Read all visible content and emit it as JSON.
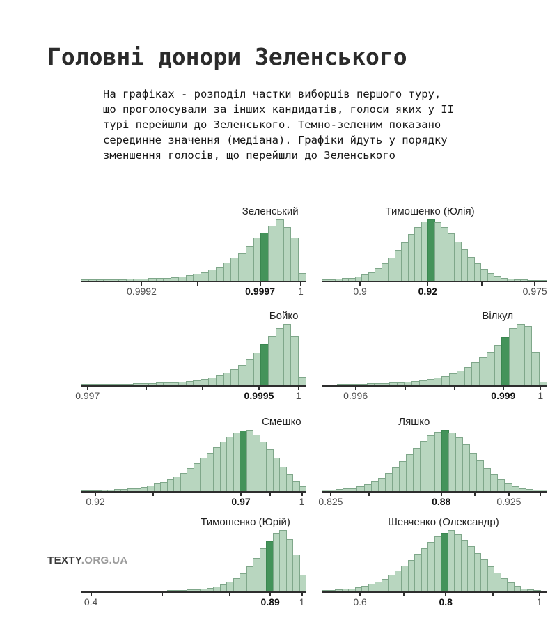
{
  "header": {
    "title": "Головні донори Зеленського",
    "subtitle": "На графіках - розподіл частки виборців першого туру,\nщо проголосували за інших кандидатів, голоси яких у ІІ\nтурі перейшли до Зеленського. Темно-зеленим показано\nсерединне значення (медіана). Графіки йдуть у порядку\nзменшення голосів, що перейшли до Зеленського"
  },
  "footer": {
    "logo_bold": "TEXTY",
    "logo_rest": ".ORG.UA"
  },
  "colors": {
    "bar_fill": "#b8d6bf",
    "bar_border": "#7fa78a",
    "median_fill": "#44935a",
    "median_border": "#3a8750",
    "axis": "#2e2e2e"
  },
  "chart_data": [
    {
      "type": "bar",
      "title": "Зеленський",
      "title_pos_pct": 84,
      "median_value": "0.9997",
      "median_bar_index": 24,
      "values_pct": [
        2,
        2,
        2,
        2,
        2,
        2,
        3,
        3,
        3,
        4,
        4,
        5,
        6,
        7,
        9,
        11,
        14,
        18,
        23,
        29,
        37,
        46,
        57,
        70,
        78,
        90,
        100,
        88,
        70,
        12
      ],
      "ticks": [
        {
          "pos_pct": 27,
          "label": "0.9992",
          "bold": false
        },
        {
          "pos_pct": 52,
          "label": "",
          "bold": false
        },
        {
          "pos_pct": 79.5,
          "label": "0.9997",
          "bold": true
        },
        {
          "pos_pct": 97.5,
          "label": "1",
          "bold": false
        }
      ]
    },
    {
      "type": "bar",
      "title": "Тимошенко (Юлія)",
      "title_pos_pct": 48,
      "median_value": "0.92",
      "median_bar_index": 16,
      "values_pct": [
        2,
        2,
        3,
        4,
        5,
        7,
        10,
        14,
        20,
        28,
        38,
        50,
        63,
        76,
        88,
        97,
        100,
        96,
        88,
        77,
        64,
        51,
        39,
        28,
        19,
        12,
        8,
        5,
        3,
        2,
        2,
        1,
        1,
        1
      ],
      "ticks": [
        {
          "pos_pct": 17,
          "label": "0.9",
          "bold": false
        },
        {
          "pos_pct": 47,
          "label": "0.92",
          "bold": true
        },
        {
          "pos_pct": 71,
          "label": "",
          "bold": false
        },
        {
          "pos_pct": 94.5,
          "label": "0.975",
          "bold": false
        }
      ]
    },
    {
      "type": "bar",
      "title": "Бойко",
      "title_pos_pct": 90,
      "median_value": "0.9995",
      "median_bar_index": 24,
      "values_pct": [
        2,
        2,
        2,
        2,
        2,
        2,
        2,
        3,
        3,
        3,
        4,
        4,
        5,
        6,
        7,
        8,
        10,
        13,
        16,
        20,
        26,
        33,
        42,
        53,
        67,
        80,
        93,
        100,
        79,
        14
      ],
      "ticks": [
        {
          "pos_pct": 3,
          "label": "0.997",
          "bold": false
        },
        {
          "pos_pct": 29,
          "label": "",
          "bold": false
        },
        {
          "pos_pct": 54,
          "label": "",
          "bold": false
        },
        {
          "pos_pct": 79,
          "label": "0.9995",
          "bold": true
        },
        {
          "pos_pct": 96.5,
          "label": "1",
          "bold": false
        }
      ]
    },
    {
      "type": "bar",
      "title": "Вілкул",
      "title_pos_pct": 78,
      "median_value": "0.999",
      "median_bar_index": 24,
      "values_pct": [
        1,
        1,
        2,
        2,
        2,
        2,
        3,
        3,
        3,
        4,
        5,
        6,
        7,
        8,
        10,
        12,
        15,
        19,
        24,
        30,
        37,
        45,
        55,
        66,
        78,
        93,
        100,
        97,
        55,
        6
      ],
      "ticks": [
        {
          "pos_pct": 15,
          "label": "0.996",
          "bold": false
        },
        {
          "pos_pct": 37,
          "label": "",
          "bold": false
        },
        {
          "pos_pct": 59,
          "label": "",
          "bold": false
        },
        {
          "pos_pct": 80.5,
          "label": "0.999",
          "bold": true
        },
        {
          "pos_pct": 97,
          "label": "1",
          "bold": false
        }
      ]
    },
    {
      "type": "bar",
      "title": "Смешко",
      "title_pos_pct": 89,
      "median_value": "0.97",
      "median_bar_index": 24,
      "values_pct": [
        1,
        1,
        1,
        2,
        2,
        3,
        3,
        4,
        5,
        7,
        9,
        12,
        15,
        19,
        24,
        30,
        37,
        45,
        54,
        63,
        72,
        81,
        89,
        95,
        99,
        100,
        92,
        81,
        68,
        54,
        40,
        27,
        16,
        8
      ],
      "ticks": [
        {
          "pos_pct": 6.5,
          "label": "0.92",
          "bold": false
        },
        {
          "pos_pct": 32,
          "label": "",
          "bold": false
        },
        {
          "pos_pct": 71,
          "label": "0.97",
          "bold": true
        },
        {
          "pos_pct": 84,
          "label": "",
          "bold": false
        },
        {
          "pos_pct": 98,
          "label": "1",
          "bold": false
        }
      ]
    },
    {
      "type": "bar",
      "title": "Ляшко",
      "title_pos_pct": 41,
      "median_value": "0.88",
      "median_bar_index": 17,
      "values_pct": [
        2,
        2,
        3,
        4,
        5,
        8,
        11,
        16,
        22,
        30,
        39,
        49,
        60,
        71,
        82,
        91,
        97,
        100,
        95,
        87,
        76,
        63,
        50,
        38,
        27,
        19,
        12,
        8,
        5,
        3,
        2,
        2
      ],
      "ticks": [
        {
          "pos_pct": 4,
          "label": "0.825",
          "bold": false
        },
        {
          "pos_pct": 21,
          "label": "",
          "bold": false
        },
        {
          "pos_pct": 53,
          "label": "0.88",
          "bold": true
        },
        {
          "pos_pct": 68,
          "label": "",
          "bold": false
        },
        {
          "pos_pct": 83,
          "label": "0.925",
          "bold": false
        },
        {
          "pos_pct": 97,
          "label": "",
          "bold": false
        }
      ]
    },
    {
      "type": "bar",
      "title": "Тимошенко (Юрій)",
      "title_pos_pct": 73,
      "median_value": "0.89",
      "median_bar_index": 28,
      "values_pct": [
        1,
        1,
        1,
        1,
        1,
        1,
        1,
        1,
        1,
        1,
        1,
        1,
        1,
        2,
        2,
        2,
        3,
        3,
        4,
        6,
        8,
        11,
        16,
        22,
        30,
        41,
        55,
        70,
        82,
        95,
        100,
        85,
        60,
        27
      ],
      "ticks": [
        {
          "pos_pct": 4.5,
          "label": "0.4",
          "bold": false
        },
        {
          "pos_pct": 36,
          "label": "",
          "bold": false
        },
        {
          "pos_pct": 66,
          "label": "",
          "bold": false
        },
        {
          "pos_pct": 84,
          "label": "0.89",
          "bold": true
        },
        {
          "pos_pct": 98,
          "label": "1",
          "bold": false
        }
      ]
    },
    {
      "type": "bar",
      "title": "Шевченко (Олександр)",
      "title_pos_pct": 54,
      "median_value": "0.8",
      "median_bar_index": 18,
      "values_pct": [
        2,
        2,
        3,
        4,
        5,
        7,
        9,
        12,
        16,
        21,
        27,
        34,
        42,
        51,
        61,
        71,
        81,
        90,
        96,
        100,
        93,
        84,
        74,
        63,
        52,
        41,
        31,
        22,
        15,
        9,
        5,
        3,
        2,
        1
      ],
      "ticks": [
        {
          "pos_pct": 17,
          "label": "0.6",
          "bold": false
        },
        {
          "pos_pct": 36.5,
          "label": "",
          "bold": false
        },
        {
          "pos_pct": 55,
          "label": "0.8",
          "bold": true
        },
        {
          "pos_pct": 76,
          "label": "",
          "bold": false
        },
        {
          "pos_pct": 96.5,
          "label": "1",
          "bold": false
        }
      ]
    }
  ]
}
